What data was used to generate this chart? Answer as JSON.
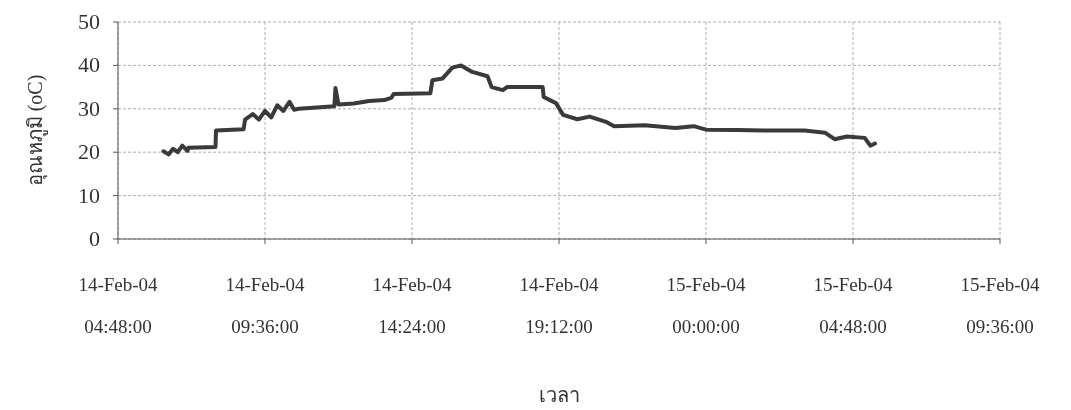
{
  "chart_data": {
    "type": "line",
    "xlabel": "เวลา",
    "ylabel": "อุณหภูมิ  (oC)",
    "xlim": [
      "--02-14T04:48",
      "--02-15T09:36"
    ],
    "xticks": [
      {
        "value": "--02-14T04:48",
        "label": "14-Feb-04\n04:48:00"
      },
      {
        "value": "--02-14T09:36",
        "label": "14-Feb-04\n09:36:00"
      },
      {
        "value": "--02-14T14:24",
        "label": "14-Feb-04\n14:24:00"
      },
      {
        "value": "--02-14T19:12",
        "label": "14-Feb-04\n19:12:00"
      },
      {
        "value": "--02-15T00:00",
        "label": "15-Feb-04\n00:00:00"
      },
      {
        "value": "--02-15T04:48",
        "label": "15-Feb-04\n04:48:00"
      },
      {
        "value": "--02-15T09:36",
        "label": "15-Feb-04\n09:36:00"
      }
    ],
    "ylim": [
      0,
      50
    ],
    "yticks": [
      0,
      10,
      20,
      30,
      40,
      50
    ],
    "grid": true,
    "line_style": "solid",
    "marker": "none",
    "series": [
      {
        "color": "#3a3a3a",
        "x": [
          "--02-14T06:17",
          "--02-14T06:27",
          "--02-14T06:36",
          "--02-14T06:45",
          "--02-14T06:54",
          "--02-14T07:04",
          "--02-14T07:06",
          "--02-14T07:59",
          "--02-14T08:00",
          "--02-14T08:54",
          "--02-14T08:57",
          "--02-14T09:12",
          "--02-14T09:24",
          "--02-14T09:36",
          "--02-14T09:48",
          "--02-14T10:00",
          "--02-14T10:12",
          "--02-14T10:24",
          "--02-14T10:33",
          "--02-14T10:42",
          "--02-14T11:52",
          "--02-14T11:54",
          "--02-14T12:00",
          "--02-14T12:30",
          "--02-14T13:00",
          "--02-14T13:30",
          "--02-14T13:44",
          "--02-14T13:48",
          "--02-14T15:00",
          "--02-14T15:04",
          "--02-14T15:24",
          "--02-14T15:43",
          "--02-14T16:00",
          "--02-14T16:22",
          "--02-14T16:52",
          "--02-14T17:00",
          "--02-14T17:22",
          "--02-14T17:30",
          "--02-14T18:40",
          "--02-14T18:42",
          "--02-14T19:06",
          "--02-14T19:20",
          "--02-14T19:48",
          "--02-14T20:12",
          "--02-14T20:44",
          "--02-14T21:00",
          "--02-14T22:00",
          "--02-14T23:00",
          "--02-14T23:36",
          "--02-15T00:00",
          "--02-15T01:00",
          "--02-15T01:54",
          "--02-15T03:13",
          "--02-15T03:53",
          "--02-15T04:12",
          "--02-15T04:36",
          "--02-15T05:11",
          "--02-15T05:22",
          "--02-15T05:31"
        ],
        "values": [
          20.2,
          19.5,
          20.8,
          20.0,
          21.5,
          20.3,
          21.0,
          21.2,
          25.0,
          25.3,
          27.5,
          28.8,
          27.5,
          29.5,
          28.0,
          30.8,
          29.5,
          31.6,
          29.8,
          30.0,
          30.6,
          34.8,
          31.0,
          31.2,
          31.8,
          32.0,
          32.6,
          33.4,
          33.6,
          36.6,
          37.0,
          39.5,
          40.0,
          38.5,
          37.5,
          35.0,
          34.3,
          35.0,
          35.0,
          32.7,
          31.3,
          28.6,
          27.6,
          28.2,
          27.0,
          26.0,
          26.2,
          25.6,
          26.0,
          25.2,
          25.1,
          25.0,
          25.0,
          24.5,
          23.0,
          23.6,
          23.3,
          21.5,
          22.0
        ]
      }
    ]
  }
}
